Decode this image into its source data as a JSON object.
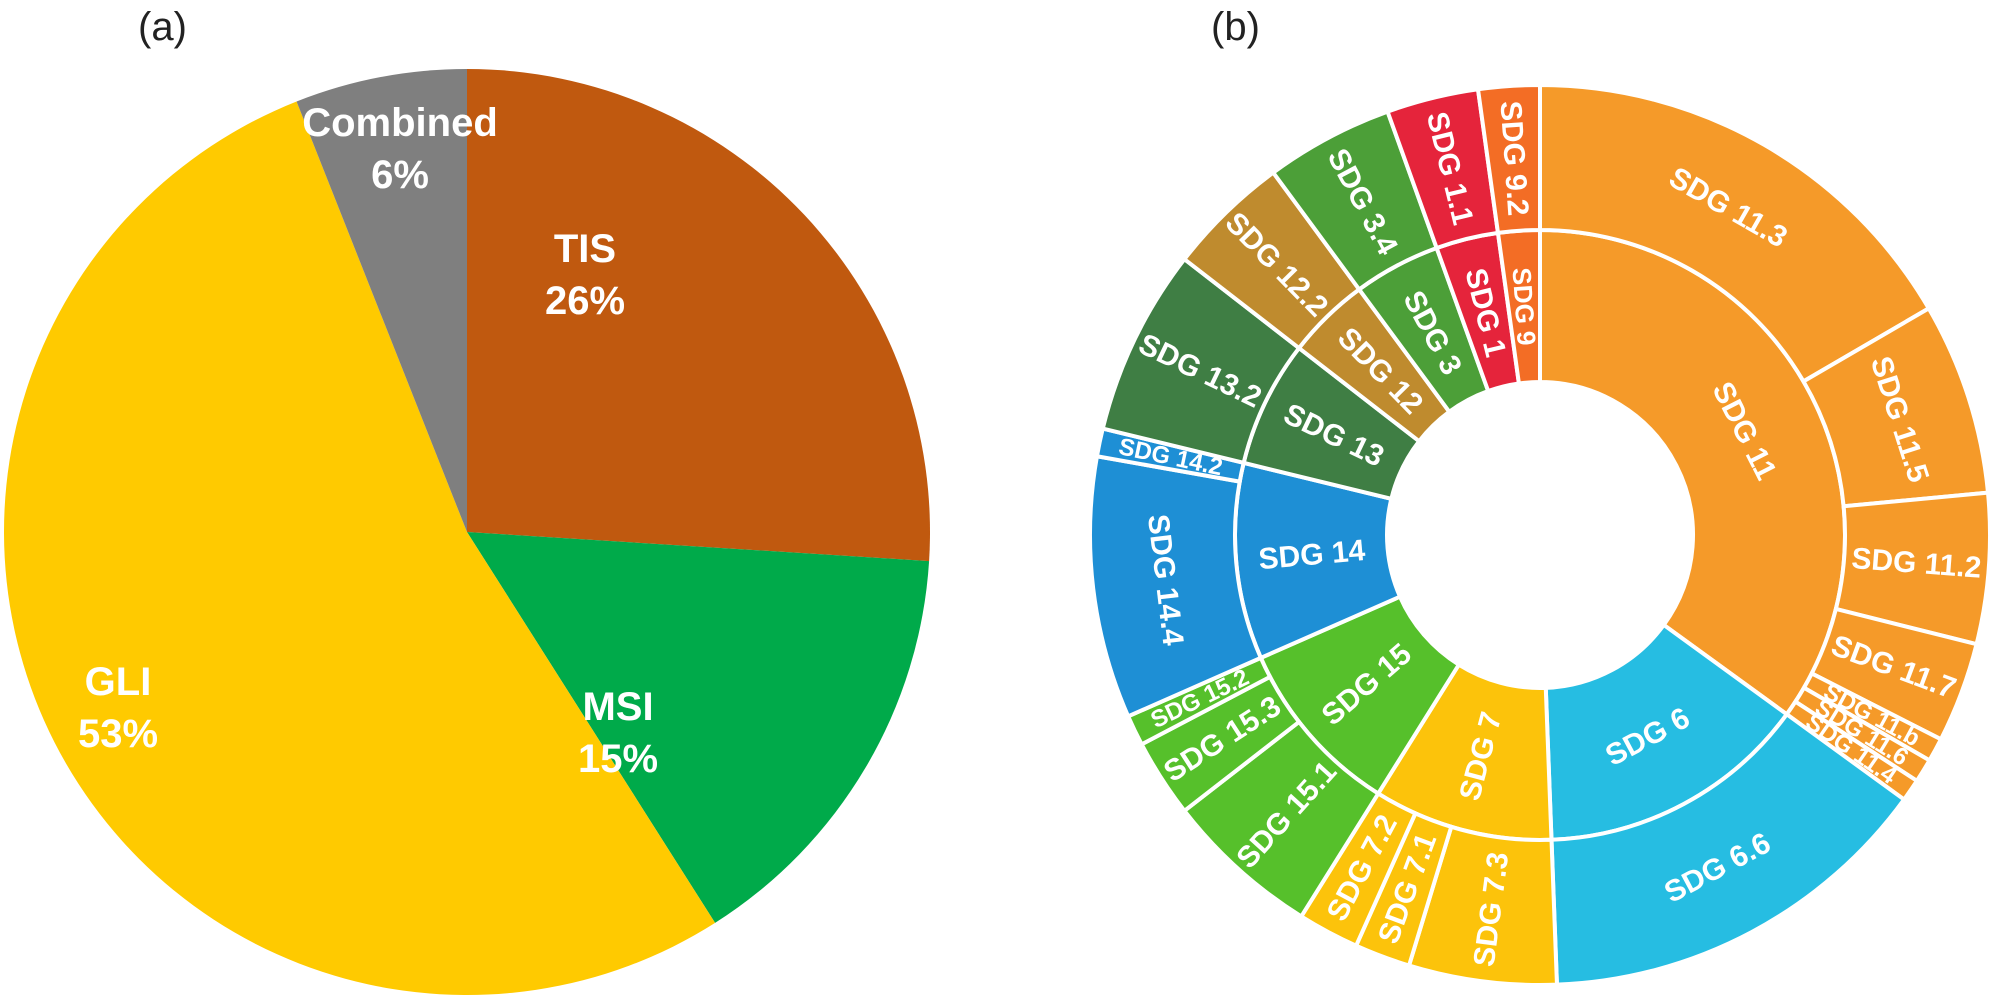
{
  "chart_data": [
    {
      "type": "pie",
      "panel": "(a)",
      "start": "top",
      "direction": "clockwise",
      "slices": [
        {
          "name": "TIS",
          "value": 26,
          "label": "26%",
          "color": "#C0590F"
        },
        {
          "name": "MSI",
          "value": 15,
          "label": "15%",
          "color": "#00AA4A"
        },
        {
          "name": "GLI",
          "value": 53,
          "label": "53%",
          "color": "#FFCA00"
        },
        {
          "name": "Combined",
          "value": 6,
          "label": "6%",
          "color": "#7F7F7F"
        }
      ]
    },
    {
      "type": "sunburst",
      "panel": "(b)",
      "start": "top",
      "direction": "clockwise",
      "units": "approximate share of full circle (%)",
      "inner": [
        {
          "name": "SDG 11",
          "value": 35.0,
          "color": "#F59A29"
        },
        {
          "name": "SDG 6",
          "value": 14.4,
          "color": "#26BDE2"
        },
        {
          "name": "SDG 7",
          "value": 9.5,
          "color": "#FCC30B"
        },
        {
          "name": "SDG 15",
          "value": 9.5,
          "color": "#56C02B"
        },
        {
          "name": "SDG 14",
          "value": 10.4,
          "color": "#1E8FD5"
        },
        {
          "name": "SDG 13",
          "value": 6.7,
          "color": "#3F7E44"
        },
        {
          "name": "SDG 12",
          "value": 4.4,
          "color": "#BF8B2E"
        },
        {
          "name": "SDG 3",
          "value": 4.6,
          "color": "#4C9F38"
        },
        {
          "name": "SDG 1",
          "value": 3.3,
          "color": "#E5243B"
        },
        {
          "name": "SDG 9",
          "value": 2.2,
          "color": "#F36D25"
        }
      ],
      "outer": [
        {
          "name": "SDG 11.3",
          "parent": "SDG 11",
          "value": 16.6
        },
        {
          "name": "SDG 11.5",
          "parent": "SDG 11",
          "value": 6.9
        },
        {
          "name": "SDG 11.2",
          "parent": "SDG 11",
          "value": 5.4
        },
        {
          "name": "SDG 11.7",
          "parent": "SDG 11",
          "value": 3.6
        },
        {
          "name": "SDG 11.b",
          "parent": "SDG 11",
          "value": 0.85
        },
        {
          "name": "SDG 11.6",
          "parent": "SDG 11",
          "value": 0.85
        },
        {
          "name": "SDG 11.4",
          "parent": "SDG 11",
          "value": 0.8
        },
        {
          "name": "SDG 6.6",
          "parent": "SDG 6",
          "value": 14.4
        },
        {
          "name": "SDG 7.3",
          "parent": "SDG 7",
          "value": 5.3
        },
        {
          "name": "SDG 7.1",
          "parent": "SDG 7",
          "value": 2.0
        },
        {
          "name": "SDG 7.2",
          "parent": "SDG 7",
          "value": 2.2
        },
        {
          "name": "SDG 15.1",
          "parent": "SDG 15",
          "value": 5.6
        },
        {
          "name": "SDG 15.3",
          "parent": "SDG 15",
          "value": 2.8
        },
        {
          "name": "SDG 15.2",
          "parent": "SDG 15",
          "value": 1.1
        },
        {
          "name": "SDG 14.4",
          "parent": "SDG 14",
          "value": 9.4
        },
        {
          "name": "SDG 14.2",
          "parent": "SDG 14",
          "value": 1.0
        },
        {
          "name": "SDG 13.2",
          "parent": "SDG 13",
          "value": 6.7
        },
        {
          "name": "SDG 12.2",
          "parent": "SDG 12",
          "value": 4.4
        },
        {
          "name": "SDG 3.4",
          "parent": "SDG 3",
          "value": 4.6
        },
        {
          "name": "SDG 1.1",
          "parent": "SDG 1",
          "value": 3.3
        },
        {
          "name": "SDG 9.2",
          "parent": "SDG 9",
          "value": 2.2
        }
      ]
    }
  ]
}
